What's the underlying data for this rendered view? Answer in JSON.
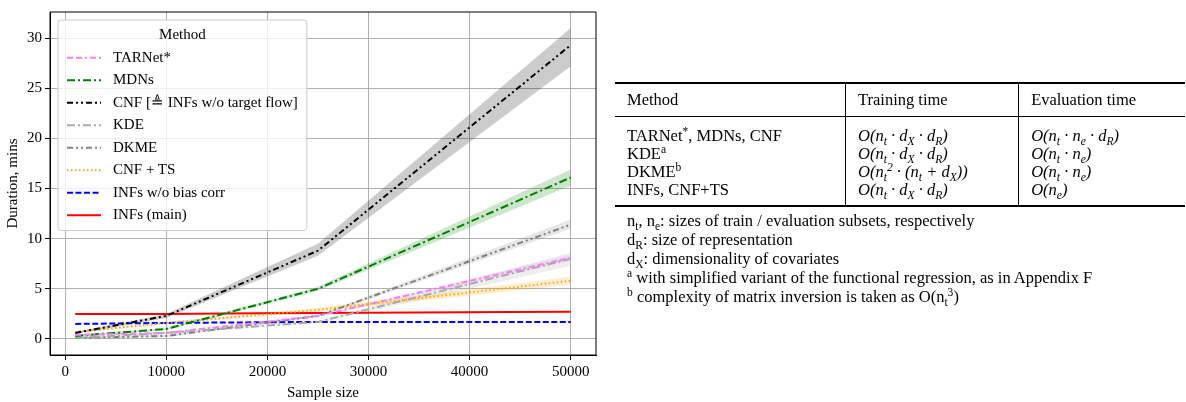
{
  "chart_data": [
    {
      "type": "line",
      "xlabel": "Sample size",
      "ylabel": "Duration, mins",
      "legend_title": "Method",
      "legend": "top left",
      "grid": true,
      "x": [
        1000,
        10000,
        25000,
        50000
      ],
      "xlim": [
        -1500,
        52500
      ],
      "xticks": [
        0,
        10000,
        20000,
        30000,
        40000,
        50000
      ],
      "ylim": [
        -1.6,
        32.6
      ],
      "yticks": [
        0,
        5,
        10,
        15,
        20,
        25,
        30
      ],
      "series": [
        {
          "name": "TARNet*",
          "color": "#ee82ee",
          "line_style": "dashdashdot",
          "values": [
            0.4,
            0.6,
            2.3,
            8.1
          ],
          "lower": [
            0.3,
            0.5,
            2.2,
            7.8
          ],
          "upper": [
            0.5,
            0.7,
            2.4,
            8.4
          ]
        },
        {
          "name": "MDNs",
          "color": "#008000",
          "line_style": "dashdot",
          "values": [
            0.3,
            1.0,
            5.0,
            16.1
          ],
          "lower": [
            0.2,
            0.9,
            4.8,
            15.3
          ],
          "upper": [
            0.4,
            1.1,
            5.2,
            16.9
          ]
        },
        {
          "name": "CNF [≜ INFs w/o target flow]",
          "color": "#000000",
          "line_style": "dashdotdot",
          "values": [
            0.6,
            2.3,
            8.8,
            29.3
          ],
          "lower": [
            0.5,
            2.1,
            8.3,
            27.2
          ],
          "upper": [
            0.7,
            2.5,
            9.5,
            31.0
          ]
        },
        {
          "name": "KDE",
          "color": "#a9a9a9",
          "line_style": "dashdot",
          "values": [
            0.1,
            0.6,
            1.7,
            8.0
          ],
          "lower": [
            0.0,
            0.5,
            1.6,
            7.3
          ],
          "upper": [
            0.2,
            0.7,
            1.8,
            8.6
          ]
        },
        {
          "name": "DKME",
          "color": "#808080",
          "line_style": "dashdotdot",
          "values": [
            0.1,
            0.3,
            2.3,
            11.4
          ],
          "lower": [
            0.0,
            0.2,
            2.2,
            11.0
          ],
          "upper": [
            0.2,
            0.4,
            2.4,
            11.9
          ]
        },
        {
          "name": "CNF + TS",
          "color": "#ffa500",
          "line_style": "dotted",
          "values": [
            0.7,
            1.6,
            2.9,
            5.8
          ],
          "lower": [
            0.6,
            1.5,
            2.7,
            5.4
          ],
          "upper": [
            0.8,
            1.7,
            3.1,
            6.2
          ]
        },
        {
          "name": "INFs w/o bias corr",
          "color": "#0000ff",
          "line_style": "dashed",
          "values": [
            1.5,
            1.6,
            1.7,
            1.7
          ]
        },
        {
          "name": "INFs (main)",
          "color": "#ff0000",
          "line_style": "solid",
          "values": [
            2.5,
            2.5,
            2.6,
            2.7
          ]
        }
      ]
    },
    {
      "type": "other",
      "categories": [
        "Method",
        "Training time",
        "Evaluation time"
      ],
      "y_categories": [
        "TARNet$^{*}$, MDNs, CNF",
        "KDE$^{a}$",
        "DKME$^{b}$",
        "INFs, CNF+TS"
      ],
      "cell_labels": [
        [
          "O(n$_{t}$ · d$_{X}$ · d$_{R}$)",
          "O(n$_{t}$ · n$_{e}$ · d$_{R}$)"
        ],
        [
          "O(n$_{t}$ · d$_{X}$ · d$_{R}$)",
          "O(n$_{t}$ · n$_{e}$)"
        ],
        [
          "O(n$_{t}$$^{2}$ · (n$_{t}$ + d$_{X}$))",
          "O(n$_{t}$ · n$_{e}$)"
        ],
        [
          "O(n$_{t}$ · d$_{X}$ · d$_{R}$)",
          "O(n$_{e}$)"
        ]
      ],
      "annotations": [
        "n$_{t}$, n$_{e}$: sizes of train / evaluation subsets, respectively",
        "d$_{R}$: size of representation",
        "d$_{X}$: dimensionality of covariates",
        "$^{a}$ with simplified variant of the functional regression, as in Appendix F",
        "$^{b}$ complexity of matrix inversion is taken as O(n$_{t}$$^{3}$)"
      ]
    }
  ]
}
